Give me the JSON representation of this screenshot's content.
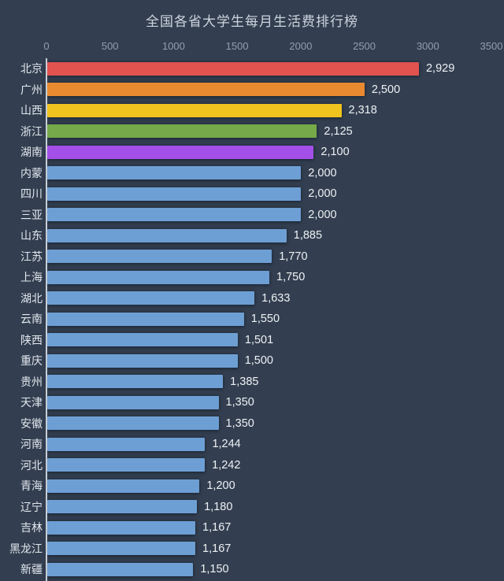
{
  "page": {
    "background_color": "#333f50",
    "accent_text_color": "#eef1f5"
  },
  "chart_data": {
    "type": "bar",
    "orientation": "horizontal",
    "title": "全国各省大学生每月生活费排行榜",
    "xlabel": "",
    "ylabel": "",
    "xlim": [
      0,
      3500
    ],
    "x_ticks": [
      0,
      500,
      1000,
      1500,
      2000,
      2500,
      3000,
      3500
    ],
    "grid": false,
    "legend": "none",
    "categories": [
      "北京",
      "广州",
      "山西",
      "浙江",
      "湖南",
      "内蒙",
      "四川",
      "三亚",
      "山东",
      "江苏",
      "上海",
      "湖北",
      "云南",
      "陕西",
      "重庆",
      "贵州",
      "天津",
      "安徽",
      "河南",
      "河北",
      "青海",
      "辽宁",
      "吉林",
      "黑龙江",
      "新疆"
    ],
    "values": [
      2929,
      2500,
      2318,
      2125,
      2100,
      2000,
      2000,
      2000,
      1885,
      1770,
      1750,
      1633,
      1550,
      1501,
      1500,
      1385,
      1350,
      1350,
      1244,
      1242,
      1200,
      1180,
      1167,
      1167,
      1150
    ],
    "value_labels": [
      "2,929",
      "2,500",
      "2,318",
      "2,125",
      "2,100",
      "2,000",
      "2,000",
      "2,000",
      "1,885",
      "1,770",
      "1,750",
      "1,633",
      "1,550",
      "1,501",
      "1,500",
      "1,385",
      "1,350",
      "1,350",
      "1,244",
      "1,242",
      "1,200",
      "1,180",
      "1,167",
      "1,167",
      "1,150"
    ],
    "bar_colors": [
      "#e2524f",
      "#e98a30",
      "#f0c31e",
      "#76a94a",
      "#a34fe8",
      "#6d9fd4",
      "#6d9fd4",
      "#6d9fd4",
      "#6d9fd4",
      "#6d9fd4",
      "#6d9fd4",
      "#6d9fd4",
      "#6d9fd4",
      "#6d9fd4",
      "#6d9fd4",
      "#6d9fd4",
      "#6d9fd4",
      "#6d9fd4",
      "#6d9fd4",
      "#6d9fd4",
      "#6d9fd4",
      "#6d9fd4",
      "#6d9fd4",
      "#6d9fd4",
      "#6d9fd4"
    ],
    "axis_line_color": "#e3e8ef",
    "tick_label_color": "#939dac",
    "category_label_color": "#e2e7ee",
    "value_label_color": "#eef1f5",
    "title_color": "#ccd3dd"
  }
}
